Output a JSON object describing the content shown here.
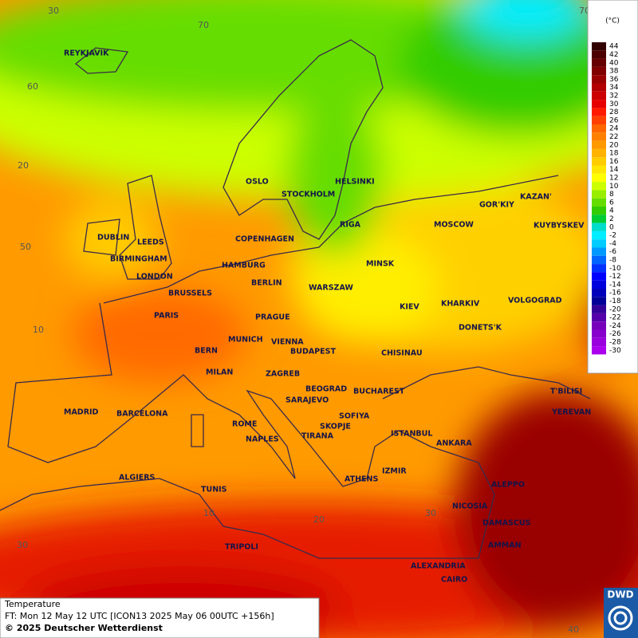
{
  "map": {
    "cities": [
      "REYKJAVIK",
      "OSLO",
      "STOCKHOLM",
      "HELSINKI",
      "DUBLIN",
      "LEEDS",
      "BIRMINGHAM",
      "LONDON",
      "GOR'KIY",
      "KAZAN'",
      "MOSCOW",
      "KUYBYSKEV",
      "RIGA",
      "COPENHAGEN",
      "HAMBURG",
      "BERLIN",
      "MINSK",
      "WARSZAW",
      "BRUSSELS",
      "KIEV",
      "KHARKIV",
      "VOLGOGRAD",
      "PARIS",
      "PRAGUE",
      "DONETS'K",
      "MUNICH",
      "VIENNA",
      "BERN",
      "BUDAPEST",
      "CHISINAU",
      "MILAN",
      "ZAGREB",
      "BEOGRAD",
      "BUCHAREST",
      "T'BILISI",
      "SARAJEVO",
      "MADRID",
      "BARCELONA",
      "YEREVAN",
      "SOFIYA",
      "ROME",
      "SKOPJE",
      "TIRANA",
      "ISTANBUL",
      "NAPLES",
      "ANKARA",
      "ALGIERS",
      "ATHENS",
      "IZMIR",
      "ALEPPO",
      "TUNIS",
      "NICOSIA",
      "DAMASCUS",
      "TRIPOLI",
      "AMMAN",
      "ALEXANDRIA",
      "CAIRO"
    ],
    "grid_labels": [
      "30",
      "70",
      "70",
      "60",
      "20",
      "50",
      "10",
      "10",
      "20",
      "30",
      "30",
      "40"
    ]
  },
  "legend": {
    "unit": "(°C)",
    "entries": [
      {
        "value": 44,
        "color": "#330000"
      },
      {
        "value": 42,
        "color": "#4d0000"
      },
      {
        "value": 40,
        "color": "#660000"
      },
      {
        "value": 38,
        "color": "#800000"
      },
      {
        "value": 36,
        "color": "#990000"
      },
      {
        "value": 34,
        "color": "#b30000"
      },
      {
        "value": 32,
        "color": "#cc0000"
      },
      {
        "value": 30,
        "color": "#e60000"
      },
      {
        "value": 28,
        "color": "#ff1a00"
      },
      {
        "value": 26,
        "color": "#ff4000"
      },
      {
        "value": 24,
        "color": "#ff6600"
      },
      {
        "value": 22,
        "color": "#ff8000"
      },
      {
        "value": 20,
        "color": "#ff9900"
      },
      {
        "value": 18,
        "color": "#ffb300"
      },
      {
        "value": 16,
        "color": "#ffcc00"
      },
      {
        "value": 14,
        "color": "#ffe600"
      },
      {
        "value": 12,
        "color": "#ffff00"
      },
      {
        "value": 10,
        "color": "#ccff00"
      },
      {
        "value": 8,
        "color": "#99ee00"
      },
      {
        "value": 6,
        "color": "#66dd00"
      },
      {
        "value": 4,
        "color": "#33cc00"
      },
      {
        "value": 2,
        "color": "#00cc33"
      },
      {
        "value": 0,
        "color": "#00ddcc"
      },
      {
        "value": -2,
        "color": "#00eeff"
      },
      {
        "value": -4,
        "color": "#00ccff"
      },
      {
        "value": -6,
        "color": "#0099ff"
      },
      {
        "value": -8,
        "color": "#0066ff"
      },
      {
        "value": -10,
        "color": "#0033ff"
      },
      {
        "value": -12,
        "color": "#0000ff"
      },
      {
        "value": -14,
        "color": "#0000dd"
      },
      {
        "value": -16,
        "color": "#0000bb"
      },
      {
        "value": -18,
        "color": "#000099"
      },
      {
        "value": -20,
        "color": "#330099"
      },
      {
        "value": -22,
        "color": "#5500aa"
      },
      {
        "value": -24,
        "color": "#7700bb"
      },
      {
        "value": -26,
        "color": "#8800cc"
      },
      {
        "value": -28,
        "color": "#9900dd"
      },
      {
        "value": -30,
        "color": "#aa00ee"
      }
    ]
  },
  "footer": {
    "title": "Temperature",
    "forecast": "FT: Mon 12 May 12 UTC [ICON13 2025 May 06 00UTC +156h]",
    "copyright": "© 2025 Deutscher Wetterdienst"
  },
  "logo": {
    "text": "DWD"
  }
}
